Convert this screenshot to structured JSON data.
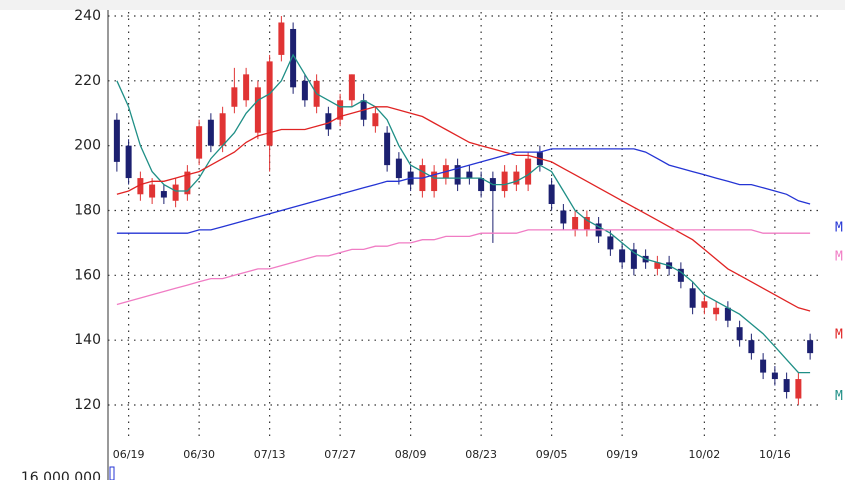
{
  "chart_data": {
    "type": "candlestick",
    "categories": [
      null,
      "06/19",
      null,
      null,
      null,
      null,
      null,
      "06/30",
      null,
      null,
      null,
      null,
      null,
      "07/13",
      null,
      null,
      null,
      null,
      null,
      "07/27",
      null,
      null,
      null,
      null,
      null,
      "08/09",
      null,
      null,
      null,
      null,
      null,
      "08/23",
      null,
      null,
      null,
      null,
      null,
      "09/05",
      null,
      null,
      null,
      null,
      null,
      "09/19",
      null,
      null,
      null,
      null,
      null,
      null,
      "10/02",
      null,
      null,
      null,
      null,
      null,
      "10/16",
      null,
      null,
      null
    ],
    "open": [
      208,
      200,
      185,
      184,
      186,
      183,
      185,
      196,
      208,
      200,
      212,
      214,
      204,
      200,
      228,
      236,
      220,
      212,
      210,
      208,
      214,
      214,
      206,
      204,
      196,
      192,
      186,
      186,
      190,
      194,
      192,
      190,
      190,
      186,
      188,
      188,
      198,
      188,
      180,
      174,
      174,
      176,
      172,
      168,
      168,
      166,
      162,
      164,
      162,
      156,
      150,
      148,
      150,
      144,
      140,
      134,
      130,
      128,
      122,
      140
    ],
    "high": [
      210,
      202,
      192,
      190,
      188,
      190,
      194,
      208,
      210,
      212,
      224,
      224,
      220,
      228,
      240,
      238,
      222,
      222,
      212,
      216,
      222,
      216,
      212,
      206,
      198,
      194,
      196,
      194,
      196,
      196,
      194,
      192,
      192,
      194,
      194,
      198,
      200,
      190,
      182,
      180,
      180,
      178,
      174,
      170,
      170,
      168,
      166,
      166,
      164,
      158,
      154,
      152,
      152,
      146,
      142,
      136,
      132,
      130,
      130,
      142
    ],
    "low": [
      192,
      188,
      183,
      182,
      182,
      181,
      183,
      194,
      198,
      198,
      210,
      212,
      202,
      192,
      226,
      216,
      212,
      210,
      203,
      206,
      212,
      206,
      204,
      192,
      188,
      186,
      184,
      184,
      188,
      186,
      188,
      184,
      170,
      184,
      186,
      186,
      192,
      180,
      174,
      172,
      172,
      170,
      166,
      162,
      160,
      162,
      160,
      160,
      156,
      148,
      148,
      146,
      144,
      138,
      134,
      128,
      126,
      122,
      120,
      134
    ],
    "close": [
      195,
      190,
      190,
      188,
      184,
      188,
      192,
      206,
      200,
      210,
      218,
      222,
      218,
      226,
      238,
      218,
      214,
      220,
      205,
      214,
      222,
      208,
      210,
      194,
      190,
      188,
      194,
      192,
      194,
      188,
      190,
      186,
      186,
      192,
      192,
      196,
      194,
      182,
      176,
      178,
      178,
      172,
      168,
      164,
      162,
      164,
      164,
      162,
      158,
      150,
      152,
      150,
      146,
      140,
      136,
      130,
      128,
      124,
      128,
      136
    ],
    "up_color": "#e03434",
    "down_color": "#1c2070",
    "series": [
      {
        "name": "M",
        "color": "#1f8f86",
        "values": [
          220,
          212,
          200,
          192,
          188,
          186,
          186,
          190,
          196,
          200,
          204,
          210,
          214,
          216,
          220,
          228,
          222,
          216,
          214,
          212,
          212,
          214,
          212,
          208,
          200,
          194,
          192,
          190,
          190,
          190,
          190,
          190,
          188,
          188,
          189,
          191,
          194,
          192,
          186,
          180,
          177,
          175,
          173,
          170,
          167,
          165,
          164,
          163,
          161,
          158,
          154,
          152,
          150,
          148,
          145,
          142,
          138,
          134,
          130,
          130
        ]
      },
      {
        "name": "M",
        "color": "#e02424",
        "values": [
          185,
          186,
          188,
          189,
          189,
          190,
          191,
          192,
          194,
          196,
          198,
          201,
          203,
          204,
          205,
          205,
          205,
          206,
          207,
          209,
          210,
          211,
          212,
          212,
          211,
          210,
          209,
          207,
          205,
          203,
          201,
          200,
          199,
          198,
          197,
          197,
          196,
          195,
          193,
          191,
          189,
          187,
          185,
          183,
          181,
          179,
          177,
          175,
          173,
          171,
          168,
          165,
          162,
          160,
          158,
          156,
          154,
          152,
          150,
          149
        ]
      },
      {
        "name": "M",
        "color": "#2434d4",
        "values": [
          173,
          173,
          173,
          173,
          173,
          173,
          173,
          174,
          174,
          175,
          176,
          177,
          178,
          179,
          180,
          181,
          182,
          183,
          184,
          185,
          186,
          187,
          188,
          189,
          189,
          190,
          190,
          191,
          192,
          193,
          194,
          195,
          196,
          197,
          198,
          198,
          198,
          199,
          199,
          199,
          199,
          199,
          199,
          199,
          199,
          198,
          196,
          194,
          193,
          192,
          191,
          190,
          189,
          188,
          188,
          187,
          186,
          185,
          183,
          182
        ]
      },
      {
        "name": "M",
        "color": "#f07cc4",
        "values": [
          151,
          152,
          153,
          154,
          155,
          156,
          157,
          158,
          159,
          159,
          160,
          161,
          162,
          162,
          163,
          164,
          165,
          166,
          166,
          167,
          168,
          168,
          169,
          169,
          170,
          170,
          171,
          171,
          172,
          172,
          172,
          173,
          173,
          173,
          173,
          174,
          174,
          174,
          174,
          174,
          174,
          174,
          174,
          174,
          174,
          174,
          174,
          174,
          174,
          174,
          174,
          174,
          174,
          174,
          174,
          173,
          173,
          173,
          173,
          173
        ]
      }
    ],
    "ylim": [
      120,
      240
    ],
    "yticks": [
      120,
      140,
      160,
      180,
      200,
      220,
      240
    ],
    "grid": true,
    "volume_ticks": [
      {
        "value": 16000000,
        "label": "16,000,000"
      }
    ]
  }
}
